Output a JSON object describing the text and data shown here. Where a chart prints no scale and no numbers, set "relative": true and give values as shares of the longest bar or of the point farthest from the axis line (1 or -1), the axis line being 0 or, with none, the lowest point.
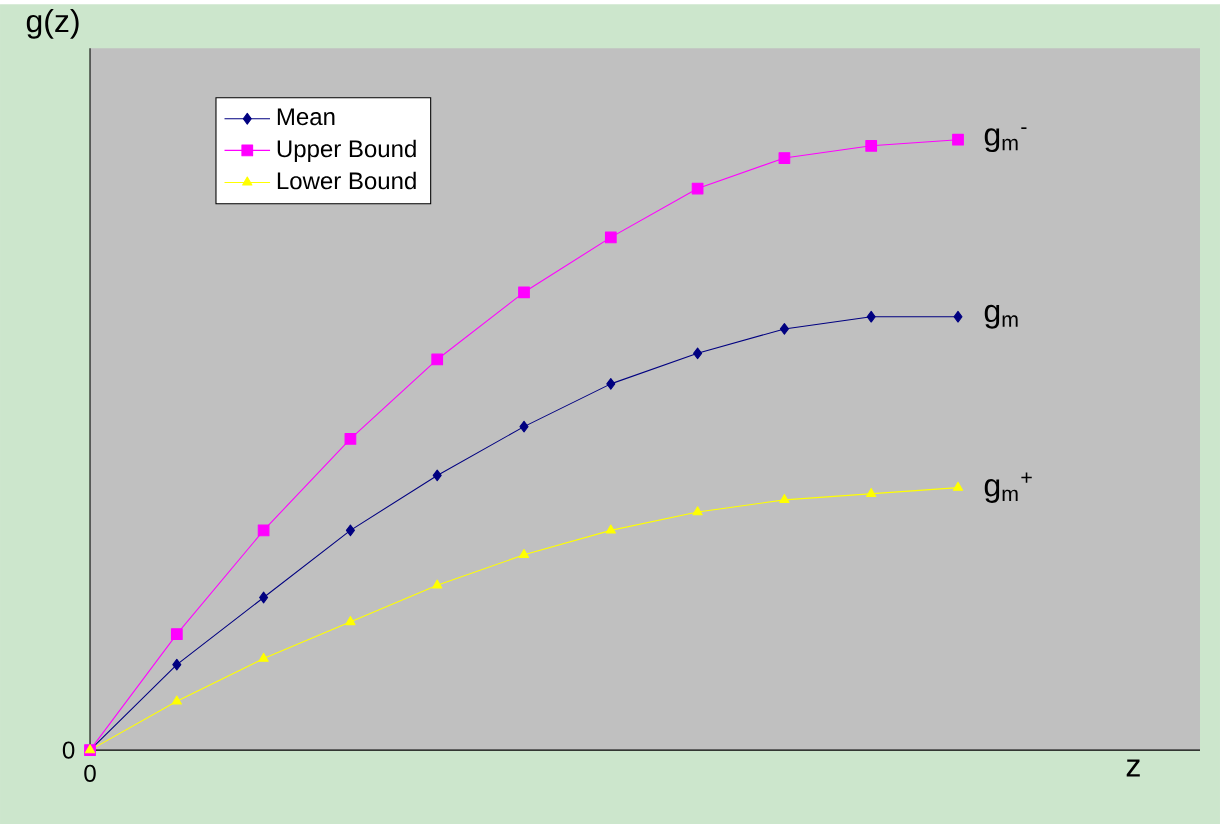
{
  "chart_data": {
    "type": "line",
    "xlabel": "z",
    "ylabel": "g(z)",
    "relative": true,
    "legend": "top left",
    "categories": [
      null,
      null,
      null,
      null,
      null,
      null,
      null,
      null,
      null,
      null,
      null
    ],
    "series": [
      {
        "name": "Mean",
        "color": "#000080",
        "marker": "diamond",
        "values": [
          0,
          0.14,
          0.25,
          0.36,
          0.45,
          0.53,
          0.6,
          0.65,
          0.69,
          0.71,
          0.71
        ]
      },
      {
        "name": "Upper Bound",
        "color": "#ff00ff",
        "marker": "square",
        "values": [
          0,
          0.19,
          0.36,
          0.51,
          0.64,
          0.75,
          0.84,
          0.92,
          0.97,
          0.99,
          1
        ]
      },
      {
        "name": "Lower Bound",
        "color": "#ffff00",
        "marker": "triangle",
        "values": [
          0,
          0.08,
          0.15,
          0.21,
          0.27,
          0.32,
          0.36,
          0.39,
          0.41,
          0.42,
          0.43
        ]
      }
    ],
    "annotations": [
      "g$_{m}$",
      "g$_{m}$$^{-}$",
      "g$_{m}$$^{+}$",
      "0",
      "0"
    ]
  }
}
